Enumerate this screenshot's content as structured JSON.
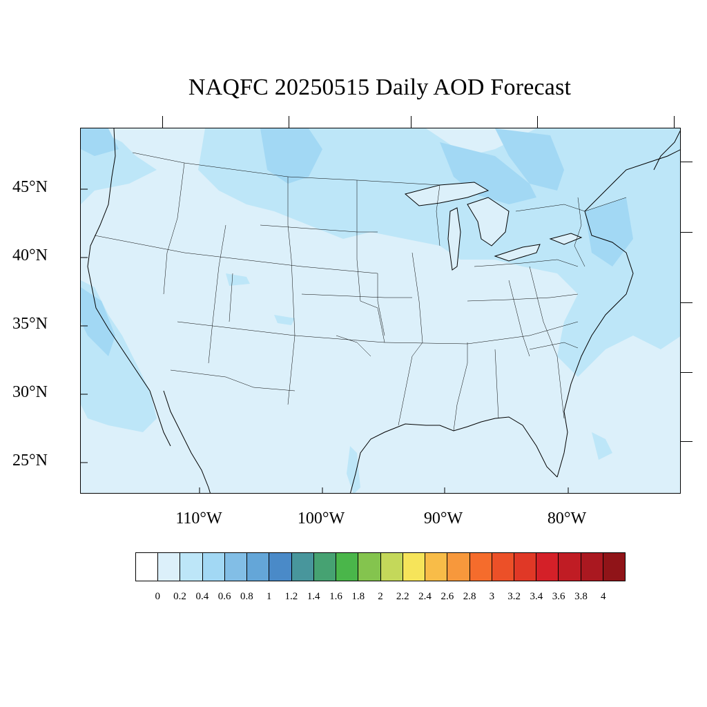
{
  "title": "NAQFC 20250515 Daily AOD Forecast",
  "map": {
    "variable": "AOD",
    "projection": "lambert-conformal",
    "region": "Continental United States",
    "colors": {
      "land_background": "#dcf0fa",
      "boundary_lines": "#000000"
    },
    "lat_labels": [
      "45°N",
      "40°N",
      "35°N",
      "30°N",
      "25°N"
    ],
    "lon_labels": [
      "110°W",
      "100°W",
      "90°W",
      "80°W"
    ]
  },
  "colorbar": {
    "levels": [
      "0",
      "0.2",
      "0.4",
      "0.6",
      "0.8",
      "1",
      "1.2",
      "1.4",
      "1.6",
      "1.8",
      "2",
      "2.2",
      "2.4",
      "2.6",
      "2.8",
      "3",
      "3.2",
      "3.4",
      "3.6",
      "3.8",
      "4"
    ],
    "colors": [
      "#ffffff",
      "#dcf0fa",
      "#bde6f8",
      "#a2d8f4",
      "#82bee6",
      "#64a6d8",
      "#4a8ac8",
      "#48969c",
      "#46a272",
      "#4ab64a",
      "#84c44e",
      "#c4d85a",
      "#f6e45a",
      "#f8bc48",
      "#f7983c",
      "#f56c2c",
      "#ec5028",
      "#e03826",
      "#d42028",
      "#c01c24",
      "#aa1820",
      "#901418"
    ]
  }
}
